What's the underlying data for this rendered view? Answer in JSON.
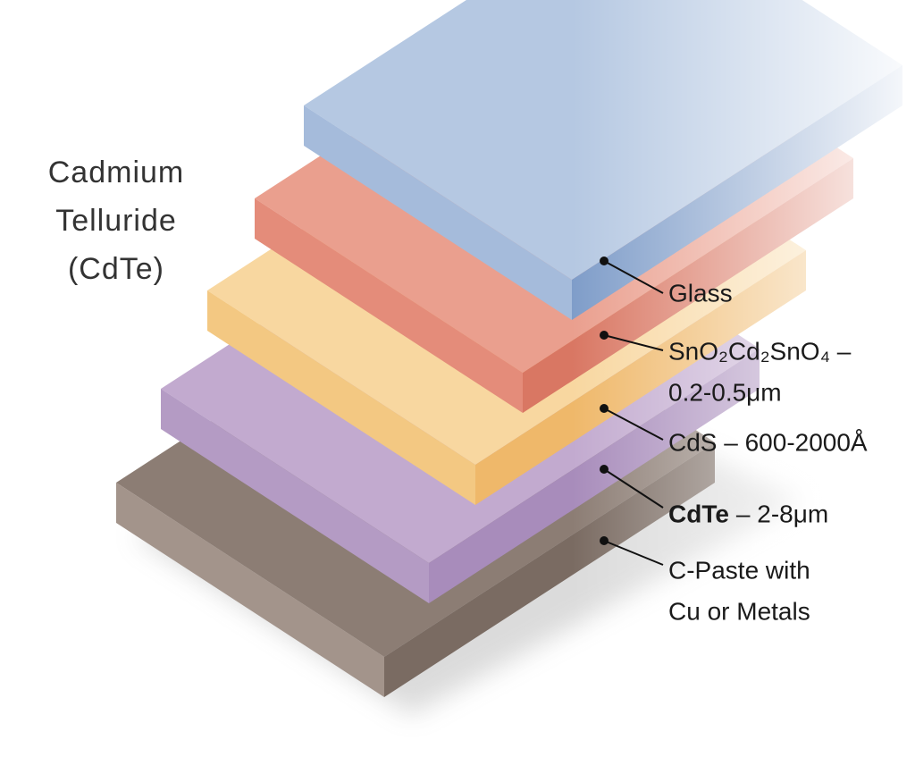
{
  "title": {
    "lines": [
      "Cadmium",
      "Telluride",
      "(CdTe)"
    ]
  },
  "layers": [
    {
      "lines": [
        "Glass"
      ]
    },
    {
      "lines": [
        "SnO₂Cd₂SnO₄ –",
        "0.2-0.5μm"
      ]
    },
    {
      "lines": [
        "CdS – 600-2000Å"
      ]
    },
    {
      "bold": "CdTe",
      "lines": [
        "– 2-8μm"
      ]
    },
    {
      "lines": [
        "C-Paste with",
        "Cu or Metals"
      ]
    }
  ]
}
